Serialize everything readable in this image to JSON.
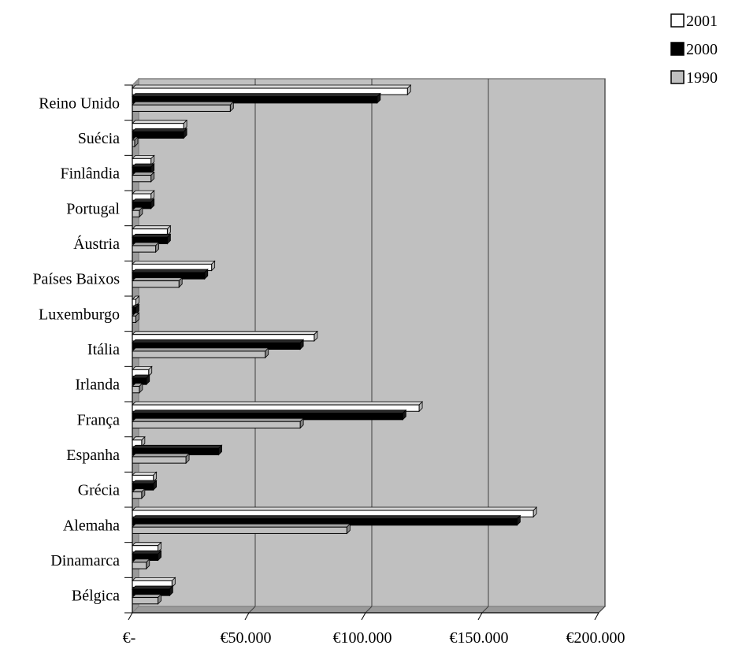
{
  "chart_data": {
    "type": "bar",
    "orientation": "horizontal",
    "style": "3d",
    "categories": [
      "Reino Unido",
      "Suécia",
      "Finlândia",
      "Portugal",
      "Áustria",
      "Países Baixos",
      "Luxemburgo",
      "Itália",
      "Irlanda",
      "França",
      "Espanha",
      "Grécia",
      "Alemaha",
      "Dinamarca",
      "Bélgica"
    ],
    "series": [
      {
        "name": "2001",
        "color": "#ffffff",
        "values": [
          118000,
          22000,
          8000,
          8000,
          15000,
          34000,
          1500,
          78000,
          7000,
          123000,
          4000,
          9000,
          172000,
          11000,
          17000
        ]
      },
      {
        "name": "2000",
        "color": "#000000",
        "values": [
          105000,
          22000,
          8000,
          8000,
          15000,
          31000,
          1500,
          72000,
          6000,
          116000,
          37000,
          9000,
          165000,
          11000,
          16000
        ]
      },
      {
        "name": "1990",
        "color": "#c0c0c0",
        "values": [
          42000,
          1000,
          8000,
          3000,
          10000,
          20000,
          1500,
          57000,
          3000,
          72000,
          23000,
          4000,
          92000,
          6000,
          11000
        ]
      }
    ],
    "xlim": [
      0,
      200000
    ],
    "x_ticks": [
      0,
      50000,
      100000,
      150000,
      200000
    ],
    "x_tick_labels": [
      "€-",
      "€50.000",
      "€100.000",
      "€150.000",
      "€200.000"
    ],
    "grid": true,
    "plot_background": "#c0c0c0",
    "legend": {
      "position": "top-right",
      "entries": [
        "2001",
        "2000",
        "1990"
      ]
    }
  }
}
